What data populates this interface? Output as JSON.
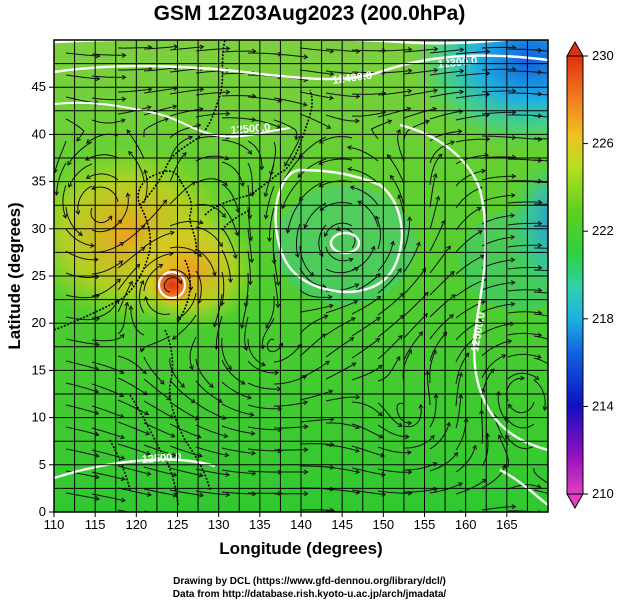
{
  "title": "GSM 12Z03Aug2023 (200.0hPa)",
  "chart_data": {
    "type": "heatmap",
    "xlabel": "Longitude (degrees)",
    "ylabel": "Latitude  (degrees)",
    "xlim": [
      110,
      170
    ],
    "ylim": [
      0,
      50
    ],
    "x_ticks": [
      "110",
      "115",
      "120",
      "125",
      "130",
      "135",
      "140",
      "145",
      "150",
      "155",
      "160",
      "165"
    ],
    "y_ticks": [
      "0",
      "5",
      "10",
      "15",
      "20",
      "25",
      "30",
      "35",
      "40",
      "45"
    ],
    "grid": true,
    "colorbar": {
      "min": 210,
      "max": 230,
      "ticks": [
        "230",
        "226",
        "222",
        "218",
        "214",
        "210"
      ],
      "colors": [
        "#e040c0",
        "#9010c0",
        "#1010c0",
        "#1060e0",
        "#20b0e0",
        "#30d0b0",
        "#30d040",
        "#60d020",
        "#b8e020",
        "#f0c020",
        "#f08020",
        "#e03010"
      ]
    },
    "contours": [
      {
        "label": "12400.0"
      },
      {
        "label": "12300.0"
      },
      {
        "label": "12500.0"
      },
      {
        "label": "12500.0"
      },
      {
        "label": "12500.0"
      }
    ]
  },
  "credits": {
    "line1": "Drawing by DCL (https://www.gfd-dennou.org/library/dcl/)",
    "line2": "Data from http://database.rish.kyoto-u.ac.jp/arch/jmadata/"
  }
}
